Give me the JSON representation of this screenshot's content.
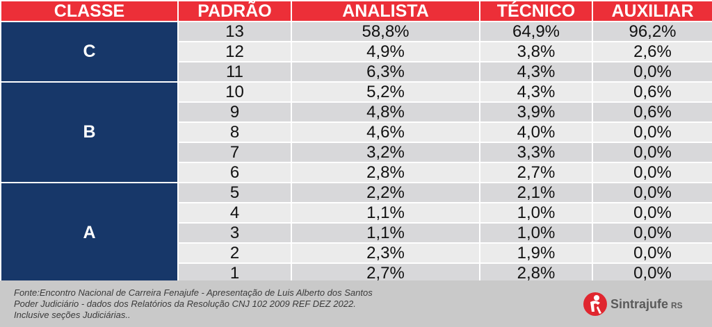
{
  "headers": [
    "CLASSE",
    "PADRÃO",
    "ANALISTA",
    "TÉCNICO",
    "AUXILIAR"
  ],
  "classes": {
    "C": "C",
    "B": "B",
    "A": "A"
  },
  "rows": [
    {
      "padrao": "13",
      "analista": "58,8%",
      "tecnico": "64,9%",
      "auxiliar": "96,2%"
    },
    {
      "padrao": "12",
      "analista": "4,9%",
      "tecnico": "3,8%",
      "auxiliar": "2,6%"
    },
    {
      "padrao": "11",
      "analista": "6,3%",
      "tecnico": "4,3%",
      "auxiliar": "0,0%"
    },
    {
      "padrao": "10",
      "analista": "5,2%",
      "tecnico": "4,3%",
      "auxiliar": "0,6%"
    },
    {
      "padrao": "9",
      "analista": "4,8%",
      "tecnico": "3,9%",
      "auxiliar": "0,6%"
    },
    {
      "padrao": "8",
      "analista": "4,6%",
      "tecnico": "4,0%",
      "auxiliar": "0,0%"
    },
    {
      "padrao": "7",
      "analista": "3,2%",
      "tecnico": "3,3%",
      "auxiliar": "0,0%"
    },
    {
      "padrao": "6",
      "analista": "2,8%",
      "tecnico": "2,7%",
      "auxiliar": "0,0%"
    },
    {
      "padrao": "5",
      "analista": "2,2%",
      "tecnico": "2,1%",
      "auxiliar": "0,0%"
    },
    {
      "padrao": "4",
      "analista": "1,1%",
      "tecnico": "1,0%",
      "auxiliar": "0,0%"
    },
    {
      "padrao": "3",
      "analista": "1,1%",
      "tecnico": "1,0%",
      "auxiliar": "0,0%"
    },
    {
      "padrao": "2",
      "analista": "2,3%",
      "tecnico": "1,9%",
      "auxiliar": "0,0%"
    },
    {
      "padrao": "1",
      "analista": "2,7%",
      "tecnico": "2,8%",
      "auxiliar": "0,0%"
    }
  ],
  "footer": {
    "lines": [
      "Fonte:Encontro Nacional de Carreira Fenajufe -  Apresentação de Luis Alberto dos Santos",
      "Poder Judiciário - dados dos Relatórios da Resolução CNJ 102 2009 REF DEZ 2022.",
      "Inclusive seções Judiciárias.."
    ],
    "logo_name": "Sintrajufe",
    "logo_suffix": "RS",
    "logo_icon": "sintrajufe-logo-icon"
  },
  "colors": {
    "header_bg": "#ec2f38",
    "classe_bg": "#173769",
    "row_odd": "#d8d8da",
    "row_even": "#ebebeb",
    "footer_bg": "#c9c9c9"
  }
}
